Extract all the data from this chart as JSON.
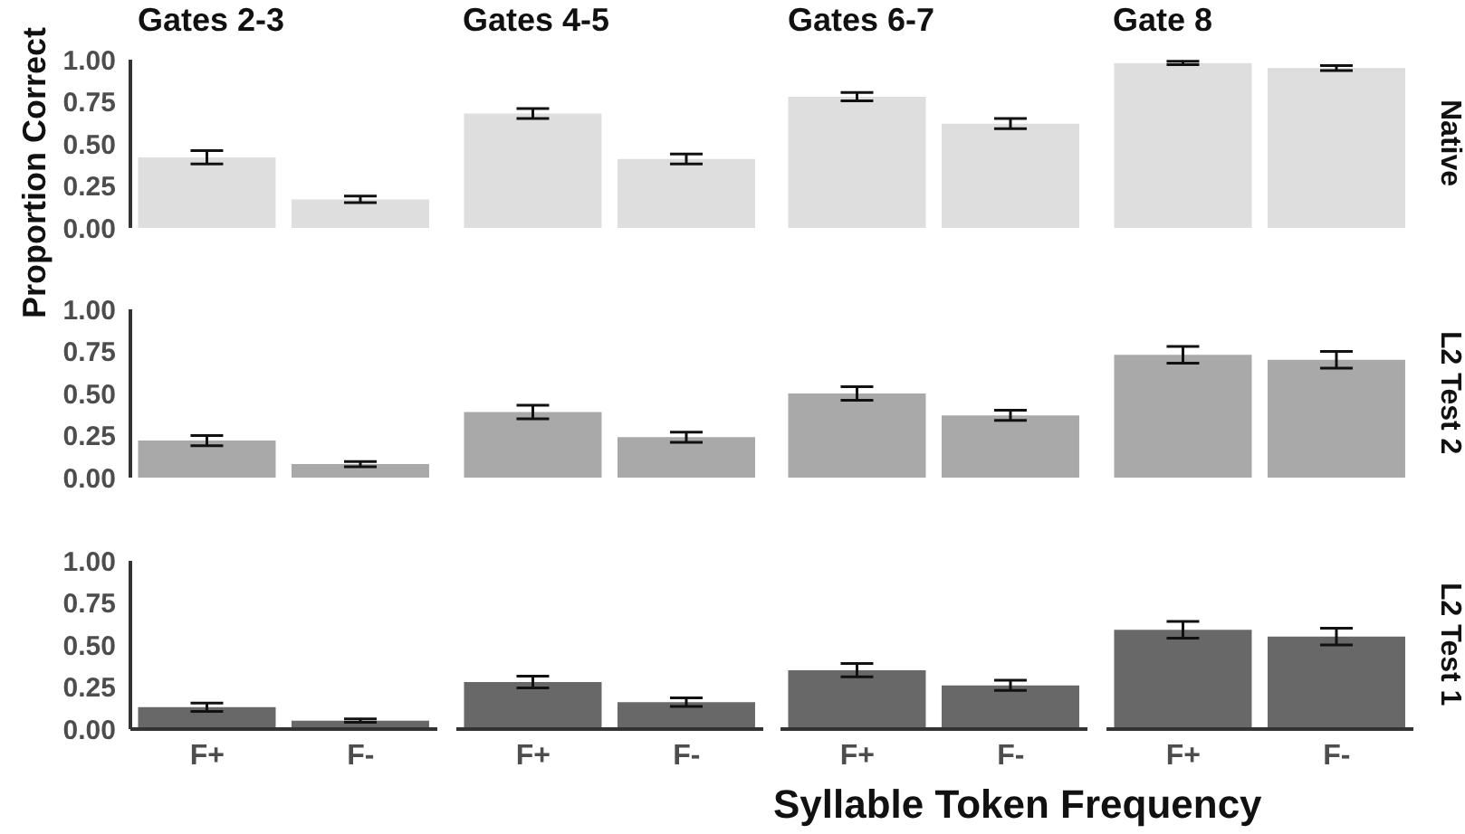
{
  "chart_data": [
    {
      "type": "bar",
      "annotations": [
        "Gates 2-3",
        "Gates 4-5",
        "Gates 6-7",
        "Gate 8"
      ],
      "y2label": "Native",
      "categories": [
        null,
        null,
        null,
        null,
        null,
        null,
        null,
        null
      ],
      "values": [
        0.42,
        0.17,
        0.68,
        0.41,
        0.78,
        0.62,
        0.98,
        0.95
      ],
      "errors": [
        0.04,
        0.02,
        0.03,
        0.03,
        0.025,
        0.03,
        0.01,
        0.015
      ],
      "color": "#dedede",
      "ylim": [
        0,
        1
      ],
      "yticks": [
        {
          "value": 0,
          "label": "0.00"
        },
        {
          "value": 0.25,
          "label": "0.25"
        },
        {
          "value": 0.5,
          "label": "0.50"
        },
        {
          "value": 0.75,
          "label": "0.75"
        },
        {
          "value": 1,
          "label": "1.00"
        }
      ],
      "tick_labels": "y"
    },
    {
      "type": "bar",
      "ylabel": "Proportion Correct",
      "y2label": "L2 Test 2",
      "categories": [
        null,
        null,
        null,
        null,
        null,
        null,
        null,
        null
      ],
      "values": [
        0.22,
        0.08,
        0.39,
        0.24,
        0.5,
        0.37,
        0.73,
        0.7
      ],
      "errors": [
        0.03,
        0.015,
        0.04,
        0.03,
        0.04,
        0.03,
        0.05,
        0.05
      ],
      "color": "#a9a9a9",
      "ylim": [
        0,
        1
      ],
      "yticks": [
        {
          "value": 0,
          "label": "0.00"
        },
        {
          "value": 0.25,
          "label": "0.25"
        },
        {
          "value": 0.5,
          "label": "0.50"
        },
        {
          "value": 0.75,
          "label": "0.75"
        },
        {
          "value": 1,
          "label": "1.00"
        }
      ],
      "tick_labels": "y"
    },
    {
      "type": "bar",
      "xlabel": "Syllable Token Frequency",
      "y2label": "L2 Test 1",
      "categories": [
        "F+",
        "F-",
        "F+",
        "F-",
        "F+",
        "F-",
        "F+",
        "F-"
      ],
      "values": [
        0.13,
        0.05,
        0.28,
        0.16,
        0.35,
        0.26,
        0.59,
        0.55
      ],
      "errors": [
        0.025,
        0.01,
        0.035,
        0.025,
        0.04,
        0.03,
        0.05,
        0.05
      ],
      "color": "#686868",
      "ylim": [
        0,
        1
      ],
      "yticks": [
        {
          "value": 0,
          "label": "0.00"
        },
        {
          "value": 0.25,
          "label": "0.25"
        },
        {
          "value": 0.5,
          "label": "0.50"
        },
        {
          "value": 0.75,
          "label": "0.75"
        },
        {
          "value": 1,
          "label": "1.00"
        }
      ]
    }
  ]
}
